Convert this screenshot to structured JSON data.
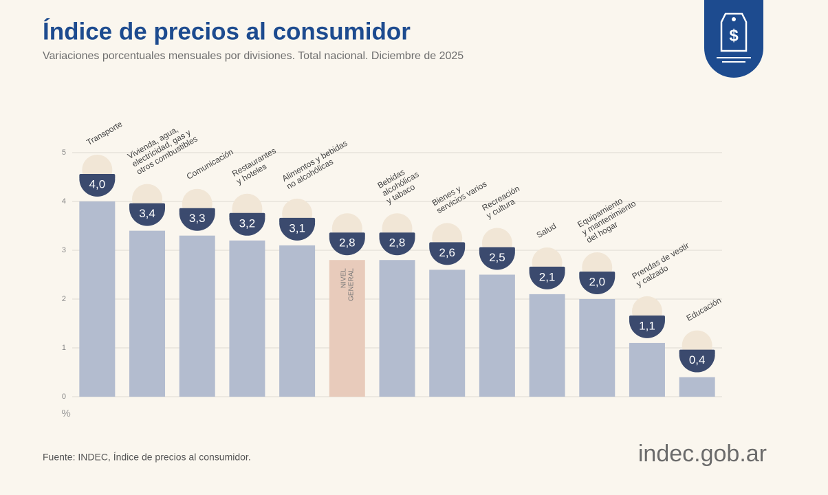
{
  "chart_data": {
    "type": "bar",
    "title": "Índice de precios al consumidor",
    "subtitle": "Variaciones porcentuales mensuales por divisiones. Total nacional. Diciembre de 2025",
    "categories": [
      "Transporte",
      "Vivienda, agua,\nelectricidad, gas y\notros combustibles",
      "Comunicación",
      "Restaurantes\ny hoteles",
      "Alimentos y bebidas\nno alcohólicas",
      "NIVEL\nGENERAL",
      "Bebidas\nalcohólicas\ny tabaco",
      "Bienes y\nservicios varios",
      "Recreación\ny cultura",
      "Salud",
      "Equipamiento\ny mantenimiento\ndel hogar",
      "Prendas de vestir\ny calzado",
      "Educación"
    ],
    "values": [
      4.0,
      3.4,
      3.3,
      3.2,
      3.1,
      2.8,
      2.8,
      2.6,
      2.5,
      2.1,
      2.0,
      1.1,
      0.4
    ],
    "value_labels": [
      "4,0",
      "3,4",
      "3,3",
      "3,2",
      "3,1",
      "2,8",
      "2,8",
      "2,6",
      "2,5",
      "2,1",
      "2,0",
      "1,1",
      "0,4"
    ],
    "colors": [
      "#b3bccf",
      "#b3bccf",
      "#b3bccf",
      "#b3bccf",
      "#b3bccf",
      "#e8cbbb",
      "#b3bccf",
      "#b3bccf",
      "#b3bccf",
      "#b3bccf",
      "#b3bccf",
      "#b3bccf",
      "#b3bccf"
    ],
    "ylim": [
      0,
      5
    ],
    "yticks": [
      0,
      1,
      2,
      3,
      4,
      5
    ],
    "y_unit": "%",
    "grid": true,
    "source": "Fuente: INDEC, Índice de precios al consumidor.",
    "logo_text": "indec.gob.ar"
  }
}
